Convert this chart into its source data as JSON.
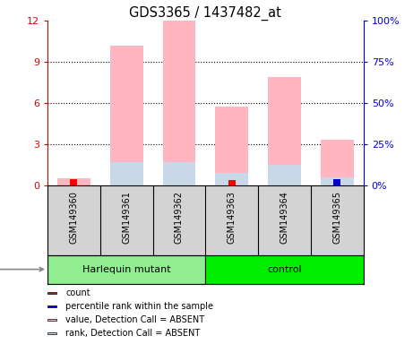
{
  "title": "GDS3365 / 1437482_at",
  "samples": [
    "GSM149360",
    "GSM149361",
    "GSM149362",
    "GSM149363",
    "GSM149364",
    "GSM149365"
  ],
  "group_labels": [
    "Harlequin mutant",
    "control"
  ],
  "value_absent": [
    0.5,
    10.2,
    12.0,
    5.7,
    7.9,
    3.3
  ],
  "rank_absent_pct": [
    0.0,
    14.0,
    14.0,
    7.5,
    12.5,
    4.5
  ],
  "count_red": [
    0.45,
    0.0,
    0.0,
    0.35,
    0.0,
    0.45
  ],
  "percentile_blue_pct": [
    0.0,
    0.0,
    0.0,
    0.0,
    0.0,
    3.5
  ],
  "ylim_left": [
    0,
    12
  ],
  "ylim_right": [
    0,
    100
  ],
  "yticks_left": [
    0,
    3,
    6,
    9,
    12
  ],
  "yticks_right": [
    0,
    25,
    50,
    75,
    100
  ],
  "ytick_labels_left": [
    "0",
    "3",
    "6",
    "9",
    "12"
  ],
  "ytick_labels_right": [
    "0%",
    "25%",
    "50%",
    "75%",
    "100%"
  ],
  "bar_width": 0.25,
  "color_value_absent": "#FFB6C1",
  "color_rank_absent": "#C8D8E8",
  "color_count": "#FF0000",
  "color_percentile": "#0000CD",
  "left_axis_color": "#DD0000",
  "right_axis_color": "#0000DD",
  "bg_sample_box": "#D3D3D3",
  "bg_group_harlequin": "#90EE90",
  "bg_group_control": "#00EE00",
  "legend_items": [
    "count",
    "percentile rank within the sample",
    "value, Detection Call = ABSENT",
    "rank, Detection Call = ABSENT"
  ],
  "legend_colors": [
    "#FF0000",
    "#0000CD",
    "#FFB6C1",
    "#C8D8E8"
  ],
  "harlequin_samples": [
    0,
    1,
    2
  ],
  "control_samples": [
    3,
    4,
    5
  ]
}
